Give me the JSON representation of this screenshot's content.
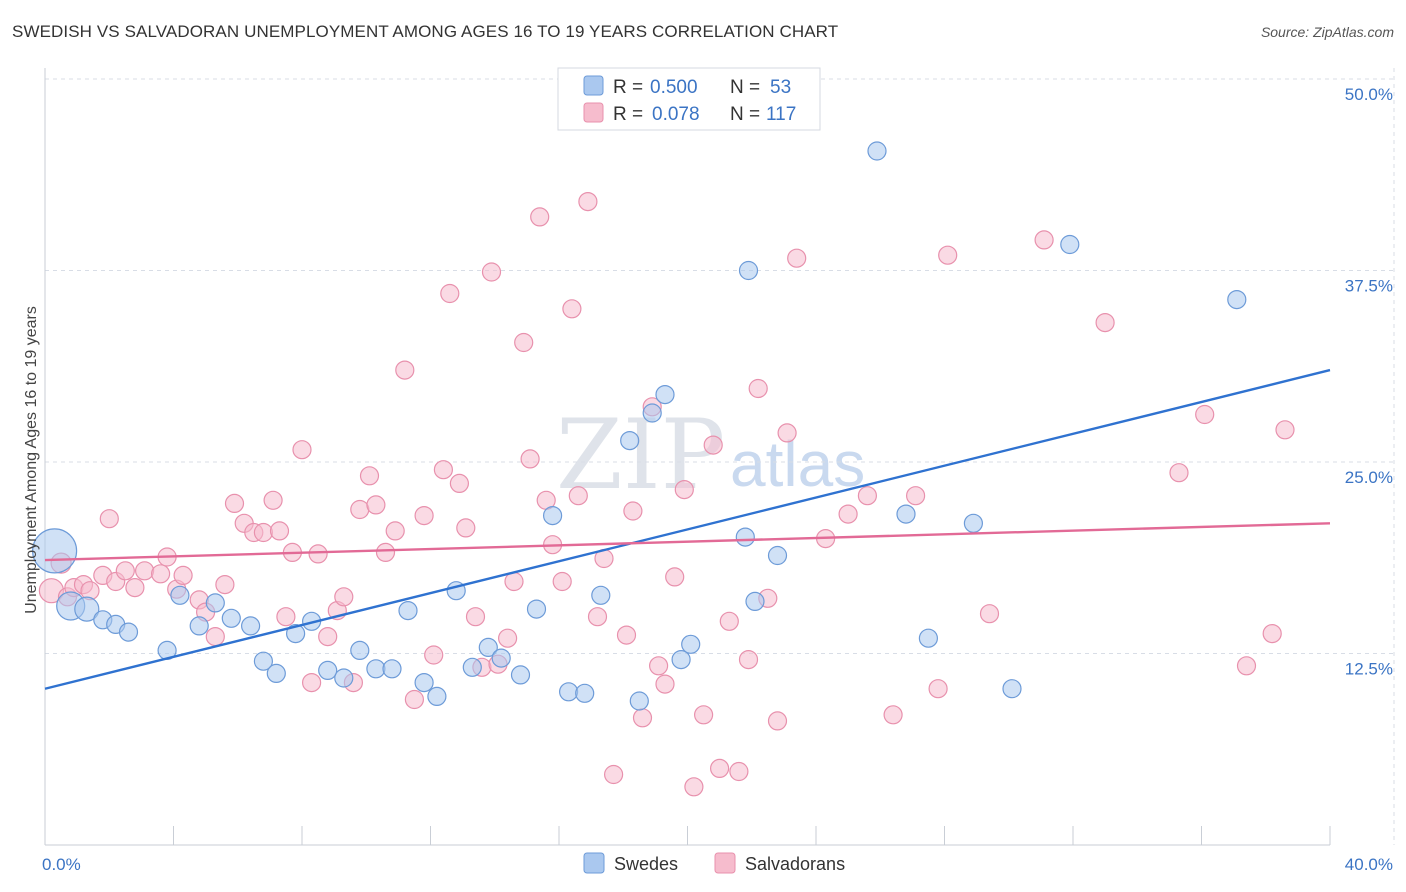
{
  "title": "SWEDISH VS SALVADORAN UNEMPLOYMENT AMONG AGES 16 TO 19 YEARS CORRELATION CHART",
  "source": "Source: ZipAtlas.com",
  "watermark": {
    "zip": "ZIP",
    "atlas": "atlas"
  },
  "colors": {
    "swedes_fill": "#aac8ef",
    "swedes_stroke": "#6d9bd8",
    "swedes_line": "#2f72d0",
    "salv_fill": "#f6bccd",
    "salv_stroke": "#e891ad",
    "salv_line": "#e26a96",
    "axis_text": "#3b74c4",
    "grid": "#d8dde6"
  },
  "legend_top": {
    "rows": [
      {
        "r_label": "R =",
        "r_value": "0.500",
        "n_label": "N =",
        "n_value": "53"
      },
      {
        "r_label": "R =",
        "r_value": "0.078",
        "n_label": "N =",
        "n_value": "117"
      }
    ]
  },
  "legend_bottom": [
    "Swedes",
    "Salvadorans"
  ],
  "chart_data": {
    "type": "scatter",
    "title": "SWEDISH VS SALVADORAN UNEMPLOYMENT AMONG AGES 16 TO 19 YEARS CORRELATION CHART",
    "xlabel": "",
    "ylabel": "Unemployment Among Ages 16 to 19 years",
    "xlim": [
      0,
      40
    ],
    "ylim": [
      0,
      50
    ],
    "x_tick_labels": [
      "0.0%",
      "40.0%"
    ],
    "y_tick_labels": [
      "12.5%",
      "25.0%",
      "37.5%",
      "50.0%"
    ],
    "y_ticks": [
      12.5,
      25.0,
      37.5,
      50.0
    ],
    "grid": true,
    "legend_position": "top-center",
    "series": [
      {
        "name": "Swedes",
        "r": 0.5,
        "n": 53,
        "trend": [
          [
            0,
            10.2
          ],
          [
            40,
            31.0
          ]
        ],
        "points": [
          [
            0.3,
            19.2,
            22
          ],
          [
            0.8,
            15.6,
            14
          ],
          [
            1.3,
            15.4,
            12
          ],
          [
            1.8,
            14.7,
            9
          ],
          [
            2.2,
            14.4,
            9
          ],
          [
            2.6,
            13.9,
            9
          ],
          [
            3.8,
            12.7,
            9
          ],
          [
            4.2,
            16.3,
            9
          ],
          [
            4.8,
            14.3,
            9
          ],
          [
            5.3,
            15.8,
            9
          ],
          [
            5.8,
            14.8,
            9
          ],
          [
            6.4,
            14.3,
            9
          ],
          [
            6.8,
            12.0,
            9
          ],
          [
            7.2,
            11.2,
            9
          ],
          [
            7.8,
            13.8,
            9
          ],
          [
            8.3,
            14.6,
            9
          ],
          [
            8.8,
            11.4,
            9
          ],
          [
            9.3,
            10.9,
            9
          ],
          [
            9.8,
            12.7,
            9
          ],
          [
            10.3,
            11.5,
            9
          ],
          [
            10.8,
            11.5,
            9
          ],
          [
            11.3,
            15.3,
            9
          ],
          [
            11.8,
            10.6,
            9
          ],
          [
            12.2,
            9.7,
            9
          ],
          [
            12.8,
            16.6,
            9
          ],
          [
            13.3,
            11.6,
            9
          ],
          [
            13.8,
            12.9,
            9
          ],
          [
            14.2,
            12.2,
            9
          ],
          [
            14.8,
            11.1,
            9
          ],
          [
            15.3,
            15.4,
            9
          ],
          [
            15.8,
            21.5,
            9
          ],
          [
            16.3,
            10.0,
            9
          ],
          [
            16.8,
            9.9,
            9
          ],
          [
            17.3,
            16.3,
            9
          ],
          [
            18.2,
            26.4,
            9
          ],
          [
            18.5,
            9.4,
            9
          ],
          [
            18.9,
            28.2,
            9
          ],
          [
            19.3,
            29.4,
            9
          ],
          [
            20.1,
            13.1,
            9
          ],
          [
            19.8,
            12.1,
            9
          ],
          [
            20.8,
            49.7,
            9
          ],
          [
            21.8,
            20.1,
            9
          ],
          [
            21.9,
            37.5,
            9
          ],
          [
            22.1,
            15.9,
            9
          ],
          [
            22.8,
            18.9,
            9
          ],
          [
            25.9,
            45.3,
            9
          ],
          [
            26.8,
            21.6,
            9
          ],
          [
            27.5,
            13.5,
            9
          ],
          [
            28.9,
            21.0,
            9
          ],
          [
            30.1,
            10.2,
            9
          ],
          [
            31.9,
            39.2,
            9
          ],
          [
            37.1,
            35.6,
            9
          ]
        ]
      },
      {
        "name": "Salvadorans",
        "r": 0.078,
        "n": 117,
        "trend": [
          [
            0,
            18.6
          ],
          [
            40,
            21.0
          ]
        ],
        "points": [
          [
            0.2,
            16.6,
            12
          ],
          [
            0.5,
            18.4,
            10
          ],
          [
            0.7,
            16.2,
            9
          ],
          [
            0.9,
            16.8,
            9
          ],
          [
            1.2,
            17.0,
            9
          ],
          [
            1.4,
            16.6,
            9
          ],
          [
            1.8,
            17.6,
            9
          ],
          [
            2.0,
            21.3,
            9
          ],
          [
            2.2,
            17.2,
            9
          ],
          [
            2.5,
            17.9,
            9
          ],
          [
            2.8,
            16.8,
            9
          ],
          [
            3.1,
            17.9,
            9
          ],
          [
            3.6,
            17.7,
            9
          ],
          [
            3.8,
            18.8,
            9
          ],
          [
            4.1,
            16.7,
            9
          ],
          [
            4.3,
            17.6,
            9
          ],
          [
            4.8,
            16.0,
            9
          ],
          [
            5.0,
            15.2,
            9
          ],
          [
            5.3,
            13.6,
            9
          ],
          [
            5.6,
            17.0,
            9
          ],
          [
            5.9,
            22.3,
            9
          ],
          [
            6.2,
            21.0,
            9
          ],
          [
            6.5,
            20.4,
            9
          ],
          [
            6.8,
            20.4,
            9
          ],
          [
            7.1,
            22.5,
            9
          ],
          [
            7.3,
            20.5,
            9
          ],
          [
            7.5,
            14.9,
            9
          ],
          [
            7.7,
            19.1,
            9
          ],
          [
            8.0,
            25.8,
            9
          ],
          [
            8.3,
            10.6,
            9
          ],
          [
            8.5,
            19.0,
            9
          ],
          [
            8.8,
            13.6,
            9
          ],
          [
            9.1,
            15.3,
            9
          ],
          [
            9.3,
            16.2,
            9
          ],
          [
            9.6,
            10.6,
            9
          ],
          [
            9.8,
            21.9,
            9
          ],
          [
            10.1,
            24.1,
            9
          ],
          [
            10.3,
            22.2,
            9
          ],
          [
            10.6,
            19.1,
            9
          ],
          [
            10.9,
            20.5,
            9
          ],
          [
            11.2,
            31.0,
            9
          ],
          [
            11.5,
            9.5,
            9
          ],
          [
            11.8,
            21.5,
            9
          ],
          [
            12.1,
            12.4,
            9
          ],
          [
            12.4,
            24.5,
            9
          ],
          [
            12.6,
            36.0,
            9
          ],
          [
            12.9,
            23.6,
            9
          ],
          [
            13.1,
            20.7,
            9
          ],
          [
            13.4,
            14.9,
            9
          ],
          [
            13.6,
            11.6,
            9
          ],
          [
            13.9,
            37.4,
            9
          ],
          [
            14.1,
            11.8,
            9
          ],
          [
            14.4,
            13.5,
            9
          ],
          [
            14.6,
            17.2,
            9
          ],
          [
            14.9,
            32.8,
            9
          ],
          [
            15.1,
            25.2,
            9
          ],
          [
            15.4,
            41.0,
            9
          ],
          [
            15.6,
            22.5,
            9
          ],
          [
            15.8,
            19.6,
            9
          ],
          [
            16.1,
            17.2,
            9
          ],
          [
            16.4,
            35.0,
            9
          ],
          [
            16.6,
            22.8,
            9
          ],
          [
            16.9,
            42.0,
            9
          ],
          [
            17.2,
            14.9,
            9
          ],
          [
            17.4,
            18.7,
            9
          ],
          [
            17.7,
            4.6,
            9
          ],
          [
            18.1,
            13.7,
            9
          ],
          [
            18.3,
            21.8,
            9
          ],
          [
            18.6,
            8.3,
            9
          ],
          [
            18.9,
            28.6,
            9
          ],
          [
            19.1,
            11.7,
            9
          ],
          [
            19.3,
            10.5,
            9
          ],
          [
            19.6,
            17.5,
            9
          ],
          [
            19.9,
            23.2,
            9
          ],
          [
            20.2,
            3.8,
            9
          ],
          [
            20.5,
            8.5,
            9
          ],
          [
            20.8,
            26.1,
            9
          ],
          [
            21.0,
            5.0,
            9
          ],
          [
            21.3,
            14.6,
            9
          ],
          [
            21.6,
            4.8,
            9
          ],
          [
            21.9,
            12.1,
            9
          ],
          [
            22.2,
            29.8,
            9
          ],
          [
            22.5,
            16.1,
            9
          ],
          [
            22.8,
            8.1,
            9
          ],
          [
            23.1,
            26.9,
            9
          ],
          [
            23.4,
            38.3,
            9
          ],
          [
            24.3,
            20.0,
            9
          ],
          [
            25.0,
            21.6,
            9
          ],
          [
            25.6,
            22.8,
            9
          ],
          [
            26.4,
            8.5,
            9
          ],
          [
            27.1,
            22.8,
            9
          ],
          [
            27.8,
            10.2,
            9
          ],
          [
            28.1,
            38.5,
            9
          ],
          [
            29.4,
            15.1,
            9
          ],
          [
            31.1,
            39.5,
            9
          ],
          [
            33.0,
            34.1,
            9
          ],
          [
            35.3,
            24.3,
            9
          ],
          [
            36.1,
            28.1,
            9
          ],
          [
            37.4,
            11.7,
            9
          ],
          [
            38.2,
            13.8,
            9
          ],
          [
            38.6,
            27.1,
            9
          ]
        ]
      }
    ]
  }
}
